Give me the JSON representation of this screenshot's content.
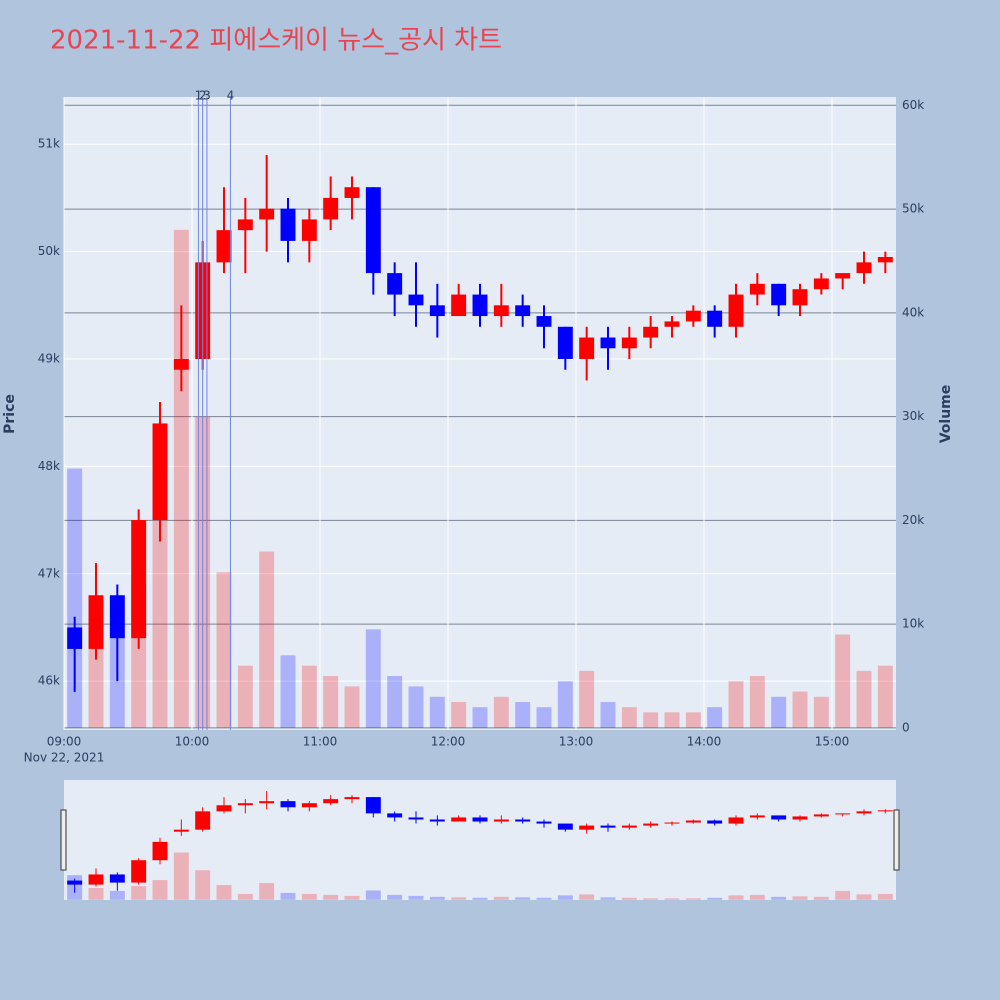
{
  "chart_data": {
    "type": "candlestick",
    "title": "2021-11-22 피에스케이 뉴스_공시 차트",
    "y_label": "Price",
    "y2_label": "Volume",
    "x_date_label": "Nov 22, 2021",
    "x": [
      "09:00",
      "09:10",
      "09:20",
      "09:30",
      "09:40",
      "09:50",
      "10:00",
      "10:10",
      "10:20",
      "10:30",
      "10:40",
      "10:50",
      "11:00",
      "11:10",
      "11:20",
      "11:30",
      "11:40",
      "11:50",
      "12:00",
      "12:10",
      "12:20",
      "12:30",
      "12:40",
      "12:50",
      "13:00",
      "13:10",
      "13:20",
      "13:30",
      "13:40",
      "13:50",
      "14:00",
      "14:10",
      "14:20",
      "14:30",
      "14:40",
      "14:50",
      "15:00",
      "15:10",
      "15:20"
    ],
    "open": [
      46500,
      46300,
      46800,
      46400,
      47500,
      48900,
      49000,
      49900,
      50200,
      50300,
      50400,
      50100,
      50300,
      50500,
      50600,
      49800,
      49600,
      49500,
      49400,
      49600,
      49400,
      49500,
      49400,
      49300,
      49000,
      49200,
      49100,
      49200,
      49300,
      49350,
      49450,
      49300,
      49600,
      49700,
      49500,
      49650,
      49750,
      49800,
      49900
    ],
    "high": [
      46600,
      47100,
      46900,
      47600,
      48600,
      49500,
      50100,
      50600,
      50500,
      50900,
      50500,
      50400,
      50700,
      50700,
      50600,
      49900,
      49900,
      49700,
      49700,
      49700,
      49700,
      49600,
      49500,
      49300,
      49300,
      49300,
      49300,
      49400,
      49400,
      49500,
      49500,
      49700,
      49800,
      49700,
      49700,
      49800,
      49800,
      50000,
      50000
    ],
    "low": [
      45900,
      46200,
      46000,
      46300,
      47300,
      48700,
      48900,
      49800,
      49800,
      50000,
      49900,
      49900,
      50200,
      50300,
      49600,
      49400,
      49300,
      49200,
      49400,
      49300,
      49300,
      49300,
      49100,
      48900,
      48800,
      48900,
      49000,
      49100,
      49200,
      49300,
      49200,
      49200,
      49500,
      49400,
      49400,
      49600,
      49650,
      49700,
      49800
    ],
    "close": [
      46300,
      46800,
      46400,
      47500,
      48400,
      49000,
      49900,
      50200,
      50300,
      50400,
      50100,
      50300,
      50500,
      50600,
      49800,
      49600,
      49500,
      49400,
      49600,
      49400,
      49500,
      49400,
      49300,
      49000,
      49200,
      49100,
      49200,
      49300,
      49350,
      49450,
      49300,
      49600,
      49700,
      49500,
      49650,
      49750,
      49800,
      49900,
      49950
    ],
    "volume": [
      25000,
      12000,
      9000,
      14000,
      20000,
      48000,
      30000,
      15000,
      6000,
      17000,
      7000,
      6000,
      5000,
      4000,
      9500,
      5000,
      4000,
      3000,
      2500,
      2000,
      3000,
      2500,
      2000,
      4500,
      5500,
      2500,
      2000,
      1500,
      1500,
      1500,
      2000,
      4500,
      5000,
      3000,
      3500,
      3000,
      9000,
      5500,
      6000
    ],
    "increasing_color": "#ff0000",
    "decreasing_color": "#0000ff",
    "xlim": [
      "09:00",
      "15:30"
    ],
    "xticks": [
      "09:00",
      "10:00",
      "11:00",
      "12:00",
      "13:00",
      "14:00",
      "15:00"
    ],
    "ylim": [
      45545,
      51440
    ],
    "yticks": [
      {
        "value": 46000,
        "label": "46k"
      },
      {
        "value": 47000,
        "label": "47k"
      },
      {
        "value": 48000,
        "label": "48k"
      },
      {
        "value": 49000,
        "label": "49k"
      },
      {
        "value": 50000,
        "label": "50k"
      },
      {
        "value": 51000,
        "label": "51k"
      }
    ],
    "y2lim": [
      -200,
      60800
    ],
    "y2ticks": [
      0,
      {
        "value": 10000,
        "label": "10k"
      },
      {
        "value": 20000,
        "label": "20k"
      },
      {
        "value": 30000,
        "label": "30k"
      },
      {
        "value": 40000,
        "label": "40k"
      },
      {
        "value": 50000,
        "label": "50k"
      },
      {
        "value": 60000,
        "label": "60k"
      }
    ],
    "annotations": [
      {
        "x": "10:03",
        "label": "1"
      },
      {
        "x": "10:05",
        "label": "2"
      },
      {
        "x": "10:07",
        "label": "3"
      },
      {
        "x": "10:18",
        "label": "4"
      }
    ],
    "grid": true,
    "range_slider": true
  }
}
